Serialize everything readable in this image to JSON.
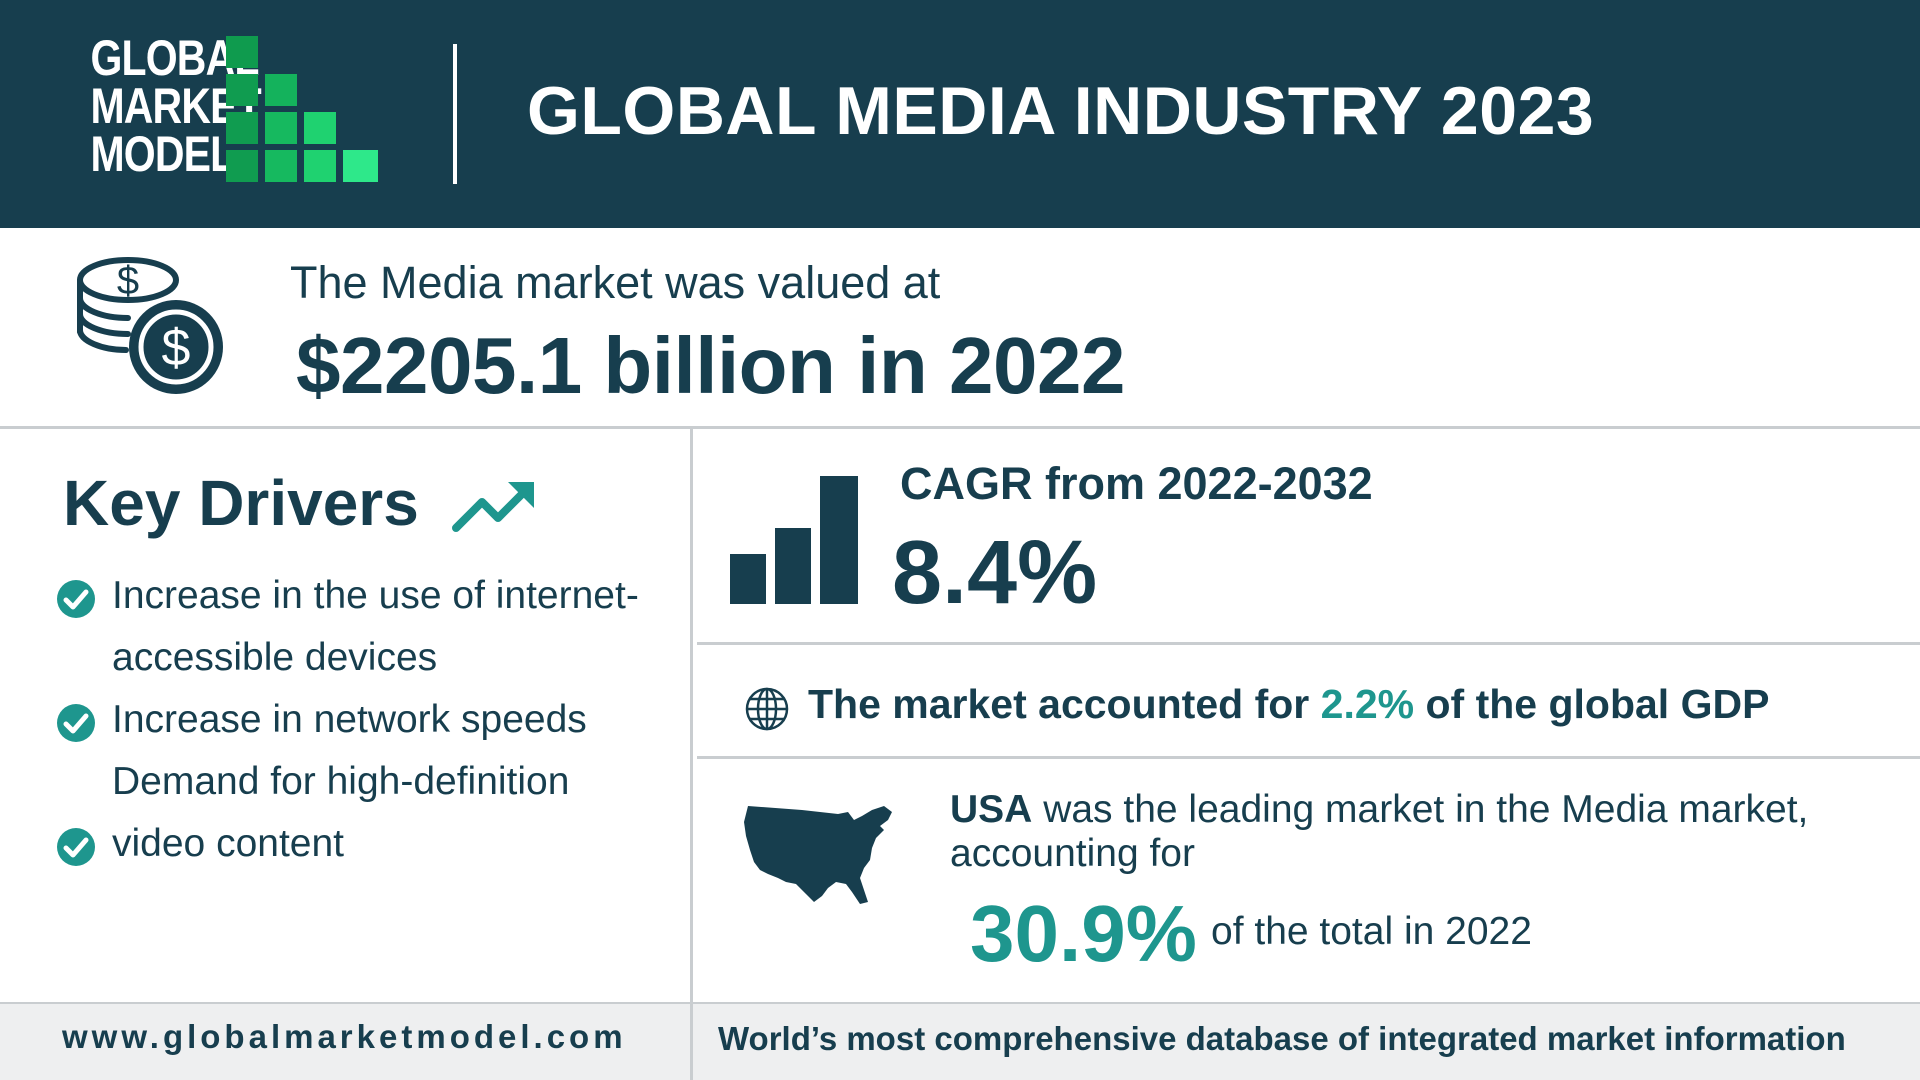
{
  "brand": {
    "logo_lines": [
      "GLOBAL",
      "MARKET",
      "MODEL"
    ],
    "colors": {
      "navy": "#173e4e",
      "teal": "#1e968e",
      "green_dark": "#0f9b4e",
      "green_light": "#2ee88a"
    }
  },
  "header": {
    "title": "GLOBAL MEDIA INDUSTRY 2023"
  },
  "valuation": {
    "intro": "The Media market was valued at",
    "amount": "$2205.1 billion in 2022",
    "icon": "coins-dollar-icon"
  },
  "drivers": {
    "title": "Key Drivers",
    "title_icon": "trending-up-icon",
    "lines": [
      "Increase in the use of internet-",
      "accessible devices",
      "Increase in network speeds",
      "Demand for high-definition",
      "video content"
    ],
    "check_icon": "check-circle-icon"
  },
  "cagr": {
    "label": "CAGR from 2022-2032",
    "value": "8.4%",
    "icon": "bar-chart-icon"
  },
  "gdp": {
    "prefix": "The market accounted for",
    "value": "2.2%",
    "suffix": "of the global GDP",
    "icon": "globe-icon"
  },
  "usa": {
    "country": "USA",
    "text": "was the leading market in the Media market, accounting for",
    "share": "30.9%",
    "tail": "of the total in 2022",
    "icon": "usa-map-icon"
  },
  "footer": {
    "url": "www.globalmarketmodel.com",
    "tagline": "World’s most comprehensive database of integrated market information"
  }
}
